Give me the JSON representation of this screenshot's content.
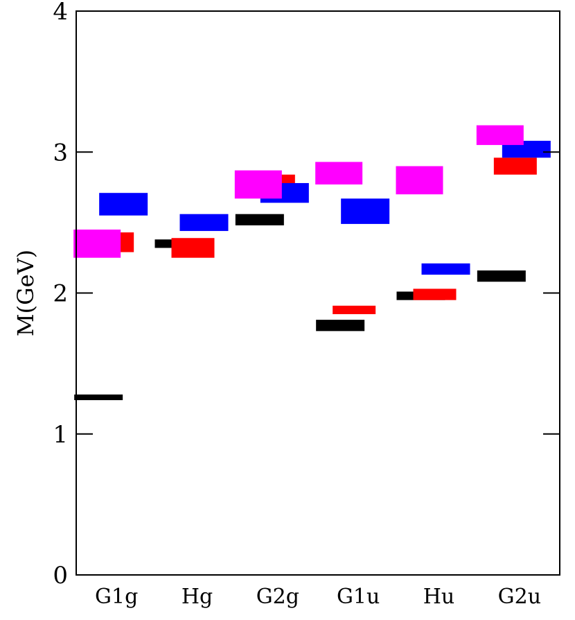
{
  "chart_data": {
    "type": "bar",
    "subtype": "mass-spectrum-levels",
    "ylabel": "M(GeV)",
    "xlabel": "",
    "ylim": [
      0,
      4
    ],
    "yticks": [
      "0",
      "1",
      "2",
      "3",
      "4"
    ],
    "grid": false,
    "categories": [
      "G1g",
      "Hg",
      "G2g",
      "G1u",
      "Hu",
      "G2u"
    ],
    "colors": {
      "black": "#000000",
      "red": "#ff0000",
      "blue": "#0000ff",
      "magenta": "#ff00ff"
    },
    "levels": [
      {
        "category": "G1g",
        "color": "black",
        "value": 1.26,
        "error": 0.02
      },
      {
        "category": "G1g",
        "color": "red",
        "value": 2.36,
        "error": 0.07
      },
      {
        "category": "G1g",
        "color": "magenta",
        "value": 2.35,
        "error": 0.1
      },
      {
        "category": "G1g",
        "color": "blue",
        "value": 2.63,
        "error": 0.08
      },
      {
        "category": "Hg",
        "color": "black",
        "value": 2.35,
        "error": 0.03
      },
      {
        "category": "Hg",
        "color": "red",
        "value": 2.32,
        "error": 0.07
      },
      {
        "category": "Hg",
        "color": "blue",
        "value": 2.5,
        "error": 0.06
      },
      {
        "category": "G2g",
        "color": "black",
        "value": 2.52,
        "error": 0.04
      },
      {
        "category": "G2g",
        "color": "red",
        "value": 2.8,
        "error": 0.04
      },
      {
        "category": "G2g",
        "color": "blue",
        "value": 2.71,
        "error": 0.07
      },
      {
        "category": "G2g",
        "color": "magenta",
        "value": 2.77,
        "error": 0.1
      },
      {
        "category": "G1u",
        "color": "black",
        "value": 1.77,
        "error": 0.04
      },
      {
        "category": "G1u",
        "color": "red",
        "value": 1.88,
        "error": 0.03
      },
      {
        "category": "G1u",
        "color": "blue",
        "value": 2.58,
        "error": 0.09
      },
      {
        "category": "G1u",
        "color": "magenta",
        "value": 2.85,
        "error": 0.08
      },
      {
        "category": "Hu",
        "color": "black",
        "value": 1.98,
        "error": 0.03
      },
      {
        "category": "Hu",
        "color": "red",
        "value": 1.99,
        "error": 0.04
      },
      {
        "category": "Hu",
        "color": "blue",
        "value": 2.17,
        "error": 0.04
      },
      {
        "category": "Hu",
        "color": "magenta",
        "value": 2.8,
        "error": 0.1
      },
      {
        "category": "G2u",
        "color": "black",
        "value": 2.12,
        "error": 0.04
      },
      {
        "category": "G2u",
        "color": "red",
        "value": 2.9,
        "error": 0.06
      },
      {
        "category": "G2u",
        "color": "blue",
        "value": 3.02,
        "error": 0.06
      },
      {
        "category": "G2u",
        "color": "magenta",
        "value": 3.12,
        "error": 0.07
      }
    ]
  }
}
